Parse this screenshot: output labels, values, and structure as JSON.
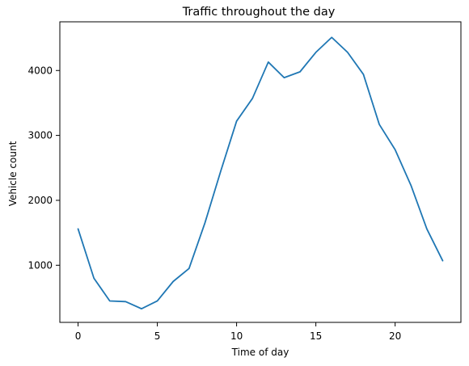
{
  "chart_data": {
    "type": "line",
    "title": "Traffic throughout the day",
    "xlabel": "Time of day",
    "ylabel": "Vehicle count",
    "x": [
      0,
      1,
      2,
      3,
      4,
      5,
      6,
      7,
      8,
      9,
      10,
      11,
      12,
      13,
      14,
      15,
      16,
      17,
      18,
      19,
      20,
      21,
      22,
      23
    ],
    "series": [
      {
        "color": "#1f77b4",
        "values": [
          1560,
          800,
          450,
          440,
          330,
          450,
          750,
          950,
          1650,
          2450,
          3220,
          3570,
          4130,
          3890,
          3980,
          4280,
          4510,
          4280,
          3940,
          3170,
          2780,
          2230,
          1560,
          1070
        ]
      }
    ],
    "xlim": [
      -1.15,
      24.15
    ],
    "ylim": [
      120,
      4750
    ],
    "xticks": [
      0,
      5,
      10,
      15,
      20
    ],
    "yticks": [
      1000,
      2000,
      3000,
      4000
    ],
    "xtick_labels": [
      "0",
      "5",
      "10",
      "15",
      "20"
    ],
    "ytick_labels": [
      "1000",
      "2000",
      "3000",
      "4000"
    ],
    "grid": false,
    "legend": "none"
  }
}
